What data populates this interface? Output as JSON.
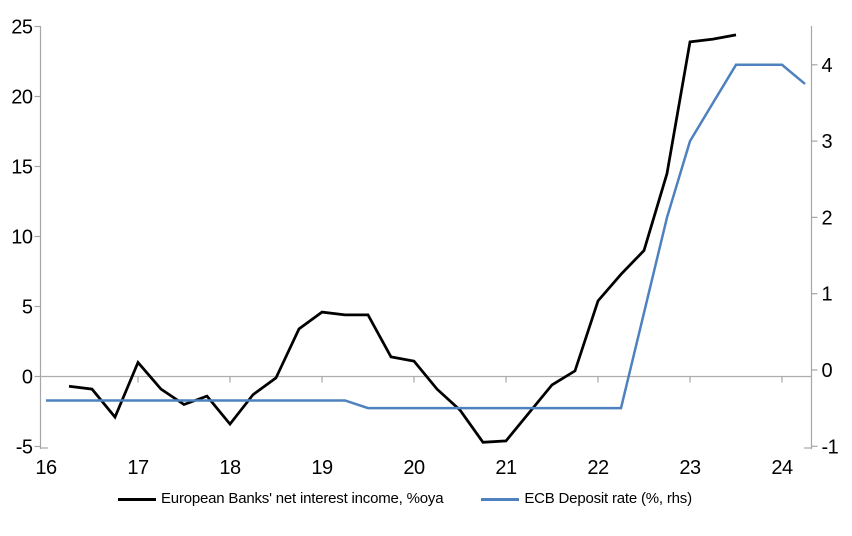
{
  "chart_data": {
    "type": "line",
    "title": "",
    "x_axis": {
      "tick_labels": [
        16,
        17,
        18,
        19,
        20,
        21,
        22,
        23,
        24
      ],
      "range": [
        16,
        24.45
      ]
    },
    "left_axis": {
      "tick_labels": [
        25,
        20,
        15,
        10,
        5,
        0,
        -5
      ],
      "range": [
        -5,
        25
      ],
      "zero_gridline": true
    },
    "right_axis": {
      "tick_labels": [
        4,
        3,
        2,
        1,
        0,
        -1
      ],
      "range": [
        -1,
        4.5
      ]
    },
    "series": [
      {
        "name": "European Banks' net interest income, %oya",
        "axis": "left",
        "color": "#000000",
        "width": 2.75,
        "x": [
          16.25,
          16.5,
          16.75,
          17.0,
          17.25,
          17.5,
          17.75,
          18.0,
          18.25,
          18.5,
          18.75,
          19.0,
          19.25,
          19.5,
          19.75,
          20.0,
          20.25,
          20.5,
          20.75,
          21.0,
          21.25,
          21.5,
          21.75,
          22.0,
          22.25,
          22.5,
          22.75,
          23.0,
          23.25,
          23.5
        ],
        "values": [
          -0.7,
          -0.9,
          -2.9,
          1.0,
          -0.9,
          -2.0,
          -1.4,
          -3.4,
          -1.3,
          -0.1,
          3.4,
          4.6,
          4.4,
          4.4,
          1.4,
          1.1,
          -0.9,
          -2.4,
          -4.7,
          -4.6,
          -2.6,
          -0.6,
          0.4,
          5.4,
          7.3,
          9.0,
          14.5,
          23.9,
          24.1,
          24.4
        ]
      },
      {
        "name": "ECB Deposit rate (%, rhs)",
        "axis": "right",
        "color": "#4E81BD",
        "width": 2.5,
        "x": [
          16.0,
          16.25,
          16.5,
          16.75,
          17.0,
          17.25,
          17.5,
          17.75,
          18.0,
          18.25,
          18.5,
          18.75,
          19.0,
          19.25,
          19.5,
          19.75,
          20.0,
          20.25,
          20.5,
          20.75,
          21.0,
          21.25,
          21.5,
          21.75,
          22.0,
          22.25,
          22.5,
          22.75,
          23.0,
          23.25,
          23.5,
          23.75,
          24.0,
          24.25
        ],
        "values": [
          -0.4,
          -0.4,
          -0.4,
          -0.4,
          -0.4,
          -0.4,
          -0.4,
          -0.4,
          -0.4,
          -0.4,
          -0.4,
          -0.4,
          -0.4,
          -0.4,
          -0.5,
          -0.5,
          -0.5,
          -0.5,
          -0.5,
          -0.5,
          -0.5,
          -0.5,
          -0.5,
          -0.5,
          -0.5,
          -0.5,
          0.75,
          2.0,
          3.0,
          3.5,
          4.0,
          4.0,
          4.0,
          3.75
        ]
      }
    ],
    "legend_position": "bottom"
  },
  "legend": {
    "items": [
      {
        "label": "European Banks' net interest income, %oya"
      },
      {
        "label": "ECB Deposit rate (%, rhs)"
      }
    ]
  },
  "colors": {
    "axis": "#A6A6A6",
    "zero_line": "#ADADAD",
    "tick_text": "#000000",
    "series_black": "#000000",
    "series_blue": "#4E81BD"
  }
}
